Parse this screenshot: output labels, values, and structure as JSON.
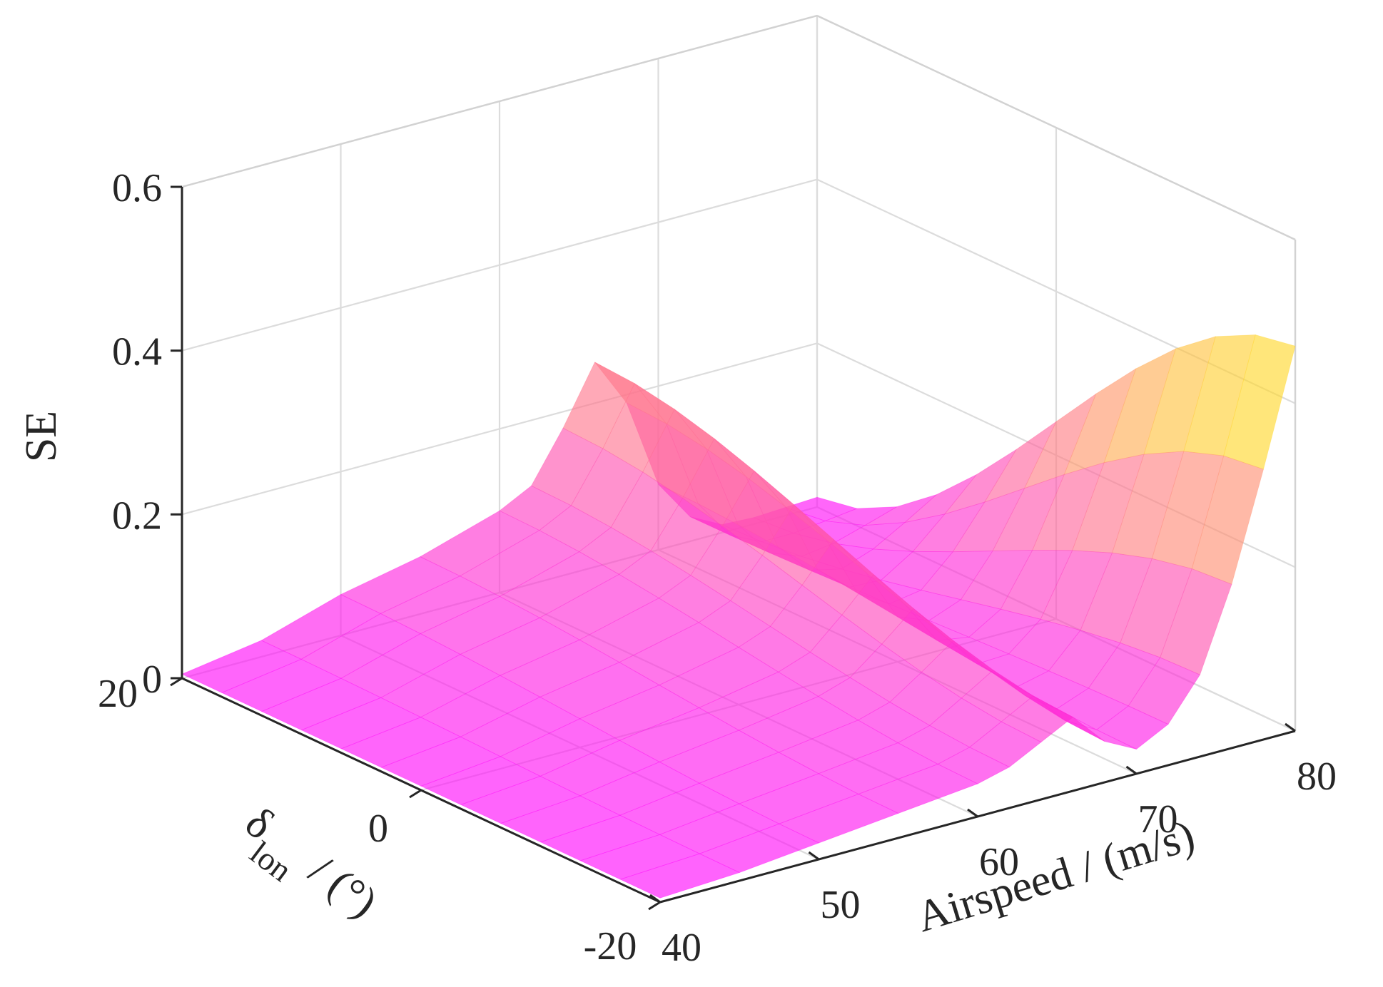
{
  "chart_data": {
    "type": "surface",
    "title": "",
    "xlabel": "Airspeed / (m/s)",
    "ylabel_main": "δ",
    "ylabel_sub": "lon",
    "ylabel_unit": " / (°)",
    "zlabel": "SE",
    "xlim": [
      40,
      80
    ],
    "ylim": [
      -20,
      20
    ],
    "zlim": [
      0,
      0.6
    ],
    "x_ticks": [
      "40",
      "50",
      "60",
      "70",
      "80"
    ],
    "y_ticks": [
      "-20",
      "0",
      "20"
    ],
    "z_ticks": [
      "0",
      "0.2",
      "0.4",
      "0.6"
    ],
    "grid": true,
    "colormap": "spring",
    "colors": {
      "low": "#ff00ff",
      "high": "#ffff00",
      "opacity": 0.62
    },
    "surface_profile": {
      "description_free": true,
      "x": [
        40,
        45,
        50,
        55,
        60,
        62,
        64,
        66,
        68,
        70,
        72,
        74,
        76,
        78,
        80
      ],
      "z_at_y_minus20": [
        0.005,
        0.01,
        0.02,
        0.03,
        0.04,
        0.05,
        0.07,
        0.09,
        0.05,
        0.03,
        0.05,
        0.1,
        0.2,
        0.33,
        0.47
      ],
      "z_at_y_plus20": [
        0.005,
        0.02,
        0.05,
        0.07,
        0.1,
        0.12,
        0.18,
        0.25,
        0.19,
        0.08,
        0.03,
        0.01,
        0.008,
        0.01,
        0.012
      ]
    }
  }
}
